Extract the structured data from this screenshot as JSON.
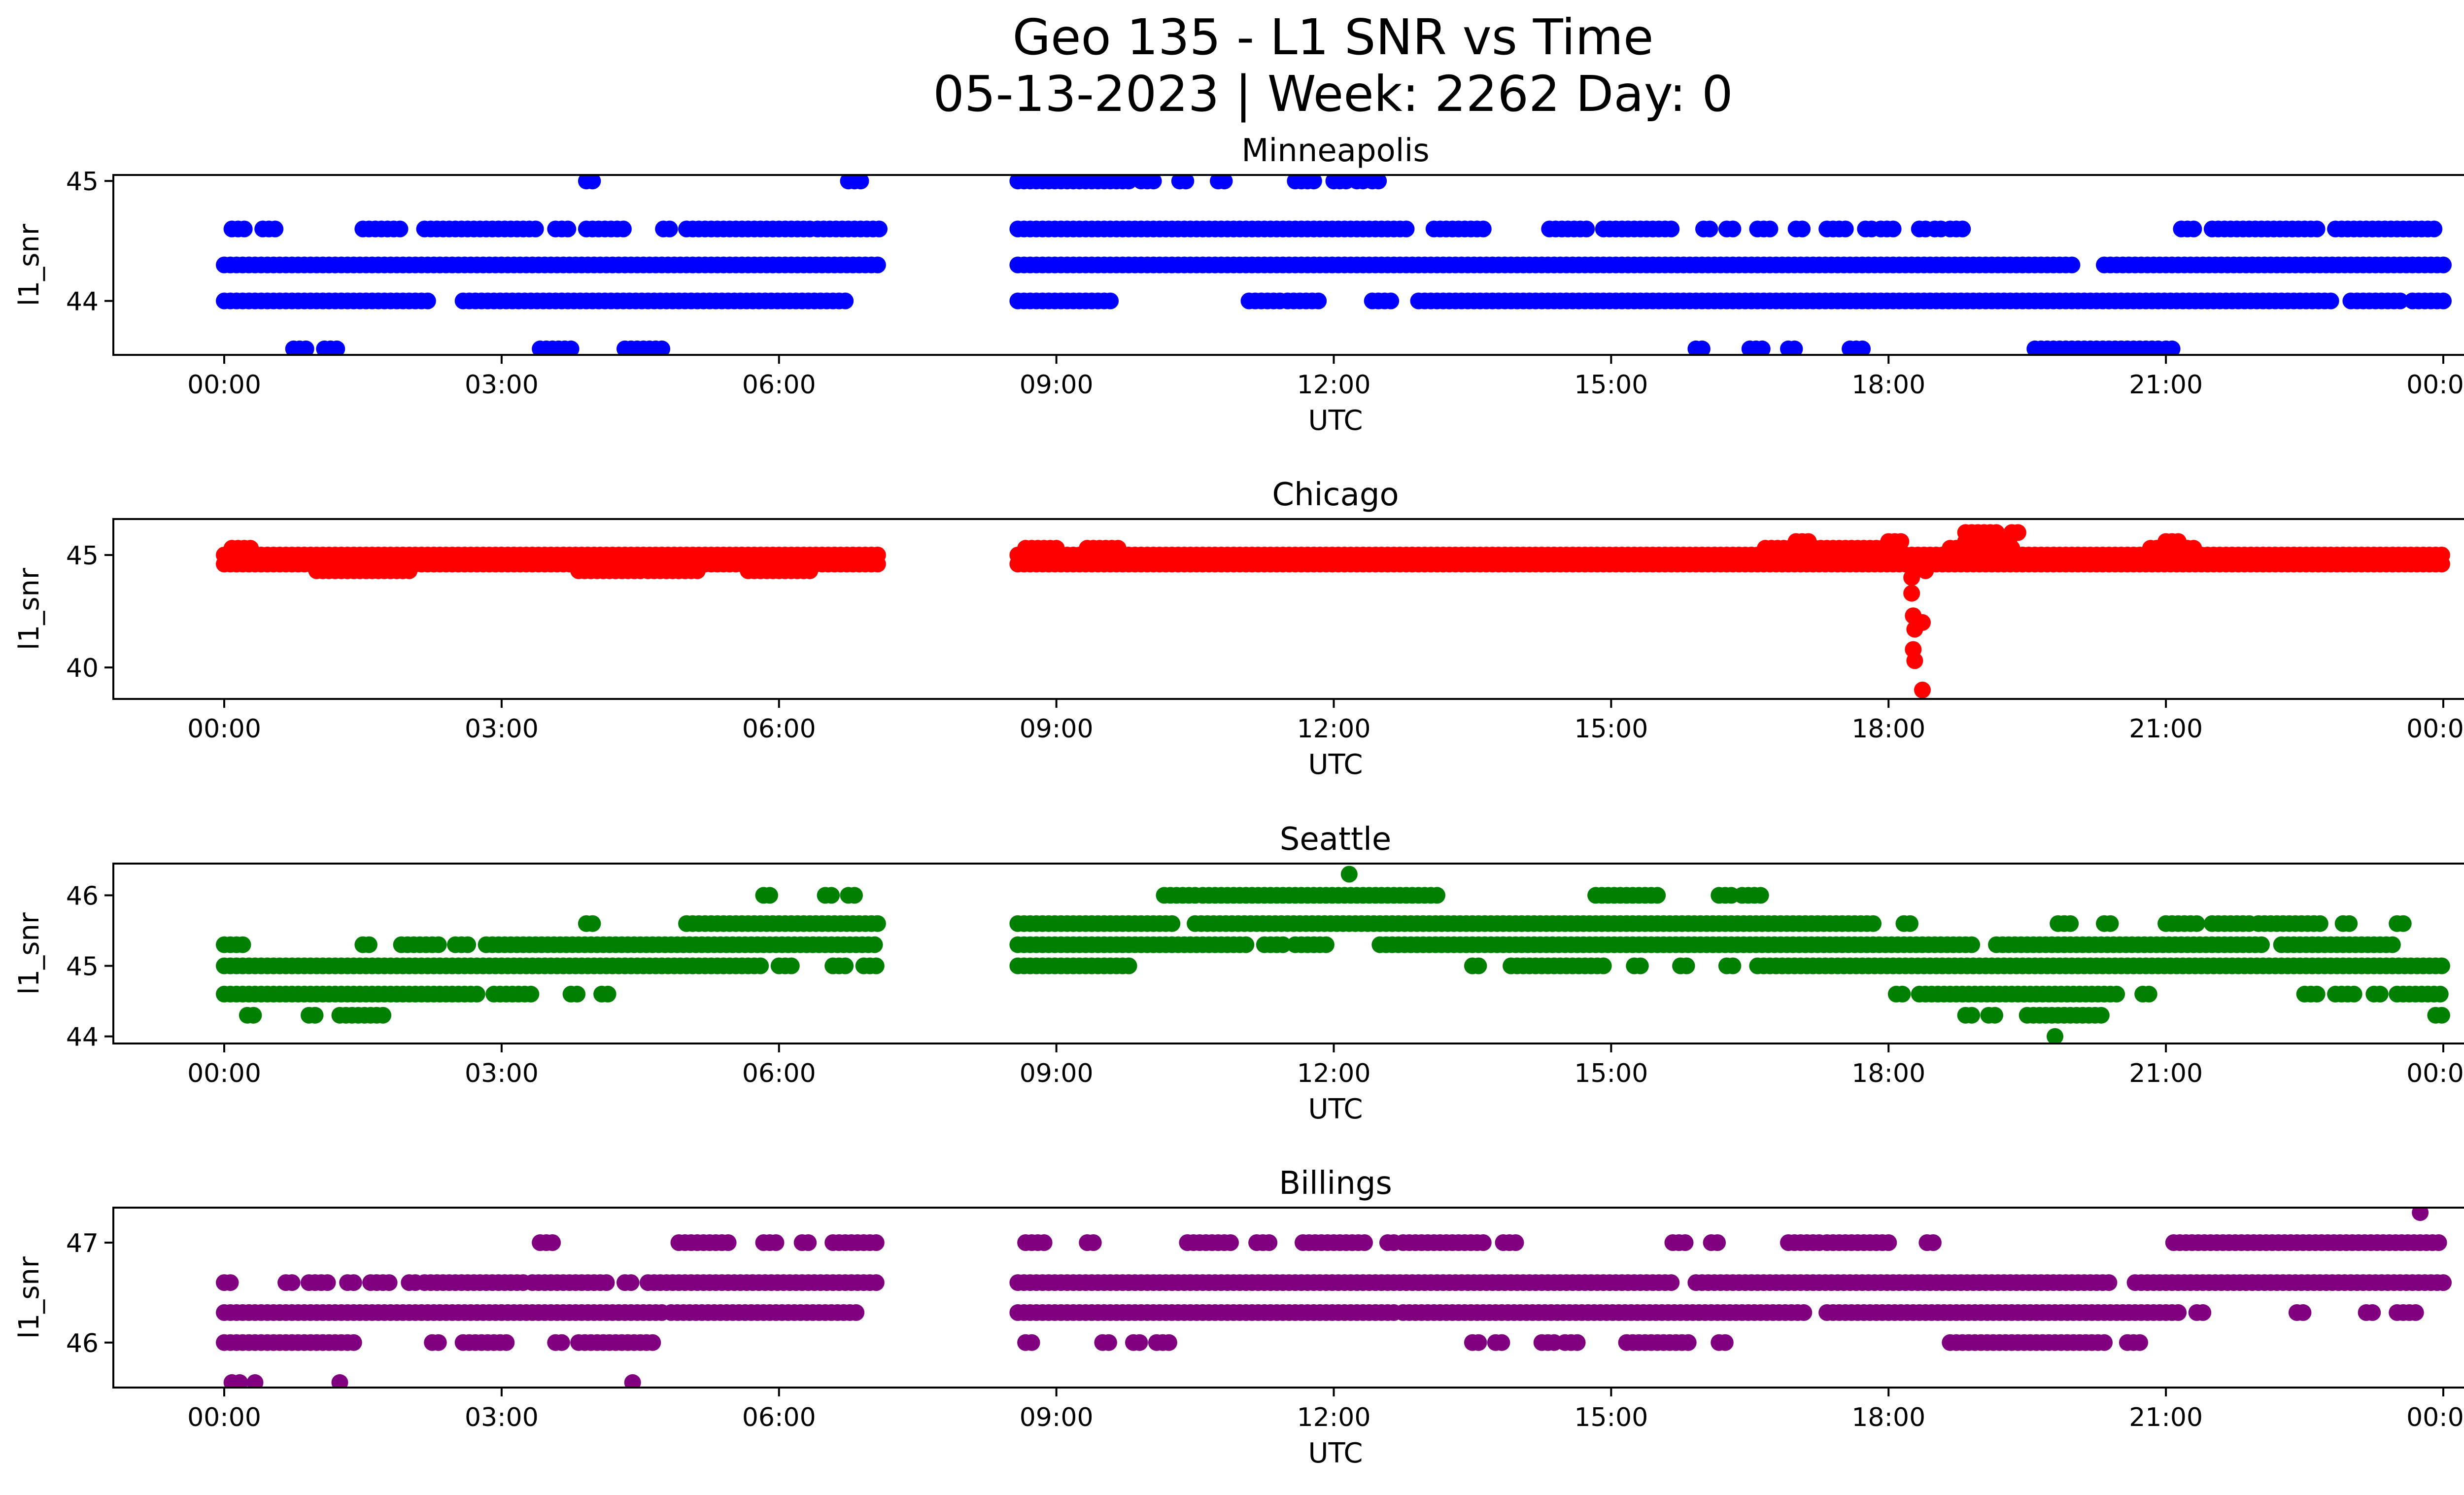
{
  "title": "Geo 135 - L1 SNR vs Time",
  "subtitle": "05-13-2023 | Week: 2262 Day: 0",
  "chart_data": [
    {
      "type": "scatter",
      "title": "Minneapolis",
      "xlabel": "UTC",
      "ylabel": "l1_snr",
      "xlim": [
        "2023-05-12T23:36",
        "2023-05-14T00:24"
      ],
      "ylim": [
        43.55,
        45.05
      ],
      "yticks": [
        44,
        45
      ],
      "xticks": [
        "00:00",
        "03:00",
        "06:00",
        "09:00",
        "12:00",
        "15:00",
        "18:00",
        "21:00",
        "00:00"
      ],
      "color": "#0000ff",
      "series": [
        {
          "y": 44.0,
          "ranges": [
            [
              "00:00",
              "02:15"
            ],
            [
              "02:35",
              "06:45"
            ],
            [
              "08:35",
              "09:35"
            ],
            [
              "11:05",
              "11:25"
            ],
            [
              "11:30",
              "11:50"
            ],
            [
              "12:25",
              "12:40"
            ],
            [
              "12:55",
              "22:50"
            ],
            [
              "23:00",
              "23:35"
            ],
            [
              "23:40",
              "24:00"
            ]
          ]
        },
        {
          "y": 44.3,
          "ranges": [
            [
              "00:00",
              "07:05"
            ],
            [
              "08:35",
              "20:00"
            ],
            [
              "20:20",
              "24:00"
            ]
          ]
        },
        {
          "y": 44.6,
          "ranges": [
            [
              "00:05",
              "00:15"
            ],
            [
              "00:25",
              "00:35"
            ],
            [
              "01:30",
              "01:55"
            ],
            [
              "02:10",
              "03:25"
            ],
            [
              "03:35",
              "03:45"
            ],
            [
              "03:55",
              "04:20"
            ],
            [
              "04:45",
              "04:50"
            ],
            [
              "05:00",
              "06:20"
            ],
            [
              "06:25",
              "07:05"
            ],
            [
              "08:35",
              "12:50"
            ],
            [
              "13:05",
              "13:40"
            ],
            [
              "14:20",
              "14:45"
            ],
            [
              "14:55",
              "15:40"
            ],
            [
              "16:00",
              "16:05"
            ],
            [
              "16:15",
              "16:20"
            ],
            [
              "16:35",
              "16:45"
            ],
            [
              "17:00",
              "17:05"
            ],
            [
              "17:20",
              "17:35"
            ],
            [
              "17:45",
              "17:50"
            ],
            [
              "17:55",
              "18:05"
            ],
            [
              "18:20",
              "18:25"
            ],
            [
              "18:30",
              "18:35"
            ],
            [
              "18:40",
              "18:50"
            ],
            [
              "21:10",
              "21:20"
            ],
            [
              "21:30",
              "22:40"
            ],
            [
              "22:50",
              "23:55"
            ]
          ]
        },
        {
          "y": 45.0,
          "ranges": [
            [
              "03:55",
              "04:00"
            ],
            [
              "06:45",
              "06:55"
            ],
            [
              "08:35",
              "09:50"
            ],
            [
              "09:55",
              "10:05"
            ],
            [
              "10:20",
              "10:25"
            ],
            [
              "10:45",
              "10:50"
            ],
            [
              "11:35",
              "11:50"
            ],
            [
              "12:00",
              "12:10"
            ],
            [
              "12:15",
              "12:20"
            ],
            [
              "12:25",
              "12:30"
            ]
          ]
        },
        {
          "y": 43.6,
          "ranges": [
            [
              "00:45",
              "00:55"
            ],
            [
              "01:05",
              "01:15"
            ],
            [
              "03:25",
              "03:45"
            ],
            [
              "04:20",
              "04:45"
            ],
            [
              "15:55",
              "16:00"
            ],
            [
              "16:30",
              "16:40"
            ],
            [
              "16:55",
              "17:00"
            ],
            [
              "17:35",
              "17:45"
            ],
            [
              "19:35",
              "20:55"
            ],
            [
              "21:00",
              "21:05"
            ]
          ]
        }
      ]
    },
    {
      "type": "scatter",
      "title": "Chicago",
      "xlabel": "UTC",
      "ylabel": "l1_snr",
      "xlim": [
        "2023-05-12T23:36",
        "2023-05-14T00:24"
      ],
      "ylim": [
        38.6,
        46.6
      ],
      "yticks": [
        40,
        45
      ],
      "xticks": [
        "00:00",
        "03:00",
        "06:00",
        "09:00",
        "12:00",
        "15:00",
        "18:00",
        "21:00",
        "00:00"
      ],
      "color": "#ff0000",
      "series": [
        {
          "y": 45.0,
          "ranges": [
            [
              "00:00",
              "07:05"
            ],
            [
              "08:35",
              "24:00"
            ]
          ]
        },
        {
          "y": 44.6,
          "ranges": [
            [
              "00:00",
              "07:05"
            ],
            [
              "08:35",
              "24:00"
            ]
          ]
        },
        {
          "y": 44.3,
          "ranges": [
            [
              "01:00",
              "02:00"
            ],
            [
              "03:50",
              "04:30"
            ],
            [
              "04:35",
              "05:10"
            ],
            [
              "05:40",
              "06:20"
            ]
          ]
        },
        {
          "y": 45.3,
          "ranges": [
            [
              "00:05",
              "00:20"
            ],
            [
              "08:40",
              "09:00"
            ],
            [
              "09:20",
              "09:40"
            ],
            [
              "16:40",
              "18:00"
            ],
            [
              "18:40",
              "19:20"
            ],
            [
              "20:50",
              "21:20"
            ]
          ]
        },
        {
          "y": 45.6,
          "ranges": [
            [
              "17:00",
              "17:10"
            ],
            [
              "18:00",
              "18:10"
            ],
            [
              "18:50",
              "19:20"
            ],
            [
              "21:00",
              "21:10"
            ]
          ]
        },
        {
          "y": 46.0,
          "ranges": [
            [
              "18:50",
              "19:10"
            ],
            [
              "19:20",
              "19:25"
            ]
          ]
        }
      ],
      "points": [
        {
          "x": "18:15",
          "y": 44.0
        },
        {
          "x": "18:15",
          "y": 43.3
        },
        {
          "x": "18:16",
          "y": 42.3
        },
        {
          "x": "18:17",
          "y": 41.7
        },
        {
          "x": "18:16",
          "y": 40.8
        },
        {
          "x": "18:17",
          "y": 40.3
        },
        {
          "x": "18:22",
          "y": 42.0
        },
        {
          "x": "18:22",
          "y": 39.0
        },
        {
          "x": "18:24",
          "y": 44.3
        }
      ]
    },
    {
      "type": "scatter",
      "title": "Seattle",
      "xlabel": "UTC",
      "ylabel": "l1_snr",
      "xlim": [
        "2023-05-12T23:36",
        "2023-05-14T00:24"
      ],
      "ylim": [
        43.9,
        46.45
      ],
      "yticks": [
        44,
        45,
        46
      ],
      "xticks": [
        "00:00",
        "03:00",
        "06:00",
        "09:00",
        "12:00",
        "15:00",
        "18:00",
        "21:00",
        "00:00"
      ],
      "color": "#008000",
      "series": [
        {
          "y": 44.6,
          "ranges": [
            [
              "00:00",
              "02:45"
            ],
            [
              "02:55",
              "03:20"
            ],
            [
              "03:45",
              "03:50"
            ],
            [
              "04:05",
              "04:10"
            ],
            [
              "18:05",
              "18:10"
            ],
            [
              "18:20",
              "20:30"
            ],
            [
              "20:45",
              "20:50"
            ],
            [
              "22:30",
              "22:40"
            ],
            [
              "22:50",
              "23:05"
            ],
            [
              "23:15",
              "23:20"
            ],
            [
              "23:30",
              "24:00"
            ]
          ]
        },
        {
          "y": 45.0,
          "ranges": [
            [
              "00:00",
              "05:50"
            ],
            [
              "06:00",
              "06:10"
            ],
            [
              "06:35",
              "06:45"
            ],
            [
              "06:55",
              "07:05"
            ],
            [
              "08:35",
              "09:50"
            ],
            [
              "13:30",
              "13:35"
            ],
            [
              "13:55",
              "14:55"
            ],
            [
              "15:15",
              "15:20"
            ],
            [
              "15:45",
              "15:50"
            ],
            [
              "16:15",
              "16:20"
            ],
            [
              "16:35",
              "24:00"
            ]
          ]
        },
        {
          "y": 45.3,
          "ranges": [
            [
              "00:00",
              "00:15"
            ],
            [
              "01:30",
              "01:35"
            ],
            [
              "01:55",
              "02:20"
            ],
            [
              "02:30",
              "02:40"
            ],
            [
              "02:50",
              "07:05"
            ],
            [
              "08:35",
              "11:05"
            ],
            [
              "11:15",
              "11:30"
            ],
            [
              "11:35",
              "11:55"
            ],
            [
              "12:30",
              "18:55"
            ],
            [
              "19:10",
              "22:05"
            ],
            [
              "22:15",
              "23:30"
            ]
          ]
        },
        {
          "y": 45.6,
          "ranges": [
            [
              "03:55",
              "04:00"
            ],
            [
              "05:00",
              "07:05"
            ],
            [
              "08:35",
              "10:15"
            ],
            [
              "10:30",
              "17:50"
            ],
            [
              "18:10",
              "18:15"
            ],
            [
              "19:50",
              "20:00"
            ],
            [
              "20:20",
              "20:25"
            ],
            [
              "21:00",
              "21:20"
            ],
            [
              "21:30",
              "21:55"
            ],
            [
              "22:00",
              "22:40"
            ],
            [
              "22:55",
              "23:00"
            ],
            [
              "23:30",
              "23:35"
            ]
          ]
        },
        {
          "y": 46.0,
          "ranges": [
            [
              "05:50",
              "05:55"
            ],
            [
              "06:30",
              "06:35"
            ],
            [
              "06:45",
              "06:50"
            ],
            [
              "10:10",
              "10:30"
            ],
            [
              "10:35",
              "13:10"
            ],
            [
              "14:50",
              "15:30"
            ],
            [
              "16:10",
              "16:20"
            ],
            [
              "16:25",
              "16:40"
            ]
          ]
        },
        {
          "y": 44.3,
          "ranges": [
            [
              "00:15",
              "00:20"
            ],
            [
              "00:55",
              "01:00"
            ],
            [
              "01:15",
              "01:45"
            ],
            [
              "18:50",
              "18:55"
            ],
            [
              "19:05",
              "19:10"
            ],
            [
              "19:30",
              "20:20"
            ],
            [
              "23:55",
              "24:00"
            ]
          ]
        }
      ],
      "points": [
        {
          "x": "12:10",
          "y": 46.3
        },
        {
          "x": "19:48",
          "y": 44.0
        }
      ]
    },
    {
      "type": "scatter",
      "title": "Billings",
      "xlabel": "UTC",
      "ylabel": "l1_snr",
      "xlim": [
        "2023-05-12T23:36",
        "2023-05-14T00:24"
      ],
      "ylim": [
        45.55,
        47.35
      ],
      "yticks": [
        46,
        47
      ],
      "xticks": [
        "00:00",
        "03:00",
        "06:00",
        "09:00",
        "12:00",
        "15:00",
        "18:00",
        "21:00",
        "00:00"
      ],
      "color": "#800080",
      "series": [
        {
          "y": 46.0,
          "ranges": [
            [
              "00:00",
              "01:25"
            ],
            [
              "02:15",
              "02:20"
            ],
            [
              "02:35",
              "03:05"
            ],
            [
              "03:35",
              "03:40"
            ],
            [
              "03:50",
              "04:40"
            ],
            [
              "08:40",
              "08:45"
            ],
            [
              "09:30",
              "09:35"
            ],
            [
              "09:50",
              "09:55"
            ],
            [
              "10:05",
              "10:15"
            ],
            [
              "13:30",
              "13:35"
            ],
            [
              "13:45",
              "13:50"
            ],
            [
              "14:15",
              "14:25"
            ],
            [
              "14:30",
              "14:40"
            ],
            [
              "15:10",
              "15:50"
            ],
            [
              "16:10",
              "16:15"
            ],
            [
              "18:40",
              "20:20"
            ],
            [
              "20:35",
              "20:45"
            ]
          ]
        },
        {
          "y": 46.3,
          "ranges": [
            [
              "00:00",
              "04:45"
            ],
            [
              "04:50",
              "06:50"
            ],
            [
              "08:35",
              "12:40"
            ],
            [
              "12:45",
              "17:05"
            ],
            [
              "17:20",
              "21:10"
            ],
            [
              "21:20",
              "21:25"
            ],
            [
              "22:25",
              "22:30"
            ],
            [
              "23:10",
              "23:15"
            ],
            [
              "23:30",
              "23:45"
            ]
          ]
        },
        {
          "y": 46.6,
          "ranges": [
            [
              "00:00",
              "00:05"
            ],
            [
              "00:40",
              "00:45"
            ],
            [
              "00:55",
              "01:10"
            ],
            [
              "01:20",
              "01:25"
            ],
            [
              "01:35",
              "01:50"
            ],
            [
              "02:00",
              "02:05"
            ],
            [
              "02:10",
              "03:15"
            ],
            [
              "03:20",
              "04:10"
            ],
            [
              "04:20",
              "04:25"
            ],
            [
              "04:35",
              "07:05"
            ],
            [
              "08:35",
              "15:40"
            ],
            [
              "15:55",
              "20:25"
            ],
            [
              "20:40",
              "24:00"
            ]
          ]
        },
        {
          "y": 47.0,
          "ranges": [
            [
              "03:25",
              "03:35"
            ],
            [
              "04:55",
              "05:30"
            ],
            [
              "05:50",
              "06:00"
            ],
            [
              "06:15",
              "06:20"
            ],
            [
              "06:35",
              "07:05"
            ],
            [
              "08:40",
              "08:55"
            ],
            [
              "09:20",
              "09:25"
            ],
            [
              "10:25",
              "10:55"
            ],
            [
              "11:10",
              "11:20"
            ],
            [
              "11:40",
              "12:20"
            ],
            [
              "12:35",
              "12:40"
            ],
            [
              "12:45",
              "13:40"
            ],
            [
              "13:50",
              "14:00"
            ],
            [
              "15:40",
              "15:50"
            ],
            [
              "16:05",
              "16:10"
            ],
            [
              "16:55",
              "17:15"
            ],
            [
              "17:20",
              "18:00"
            ],
            [
              "18:25",
              "18:30"
            ],
            [
              "21:05",
              "24:00"
            ]
          ]
        }
      ],
      "points": [
        {
          "x": "00:05",
          "y": 45.6
        },
        {
          "x": "00:10",
          "y": 45.6
        },
        {
          "x": "00:20",
          "y": 45.6
        },
        {
          "x": "01:15",
          "y": 45.6
        },
        {
          "x": "04:25",
          "y": 45.6
        },
        {
          "x": "23:45",
          "y": 47.3
        }
      ]
    }
  ]
}
